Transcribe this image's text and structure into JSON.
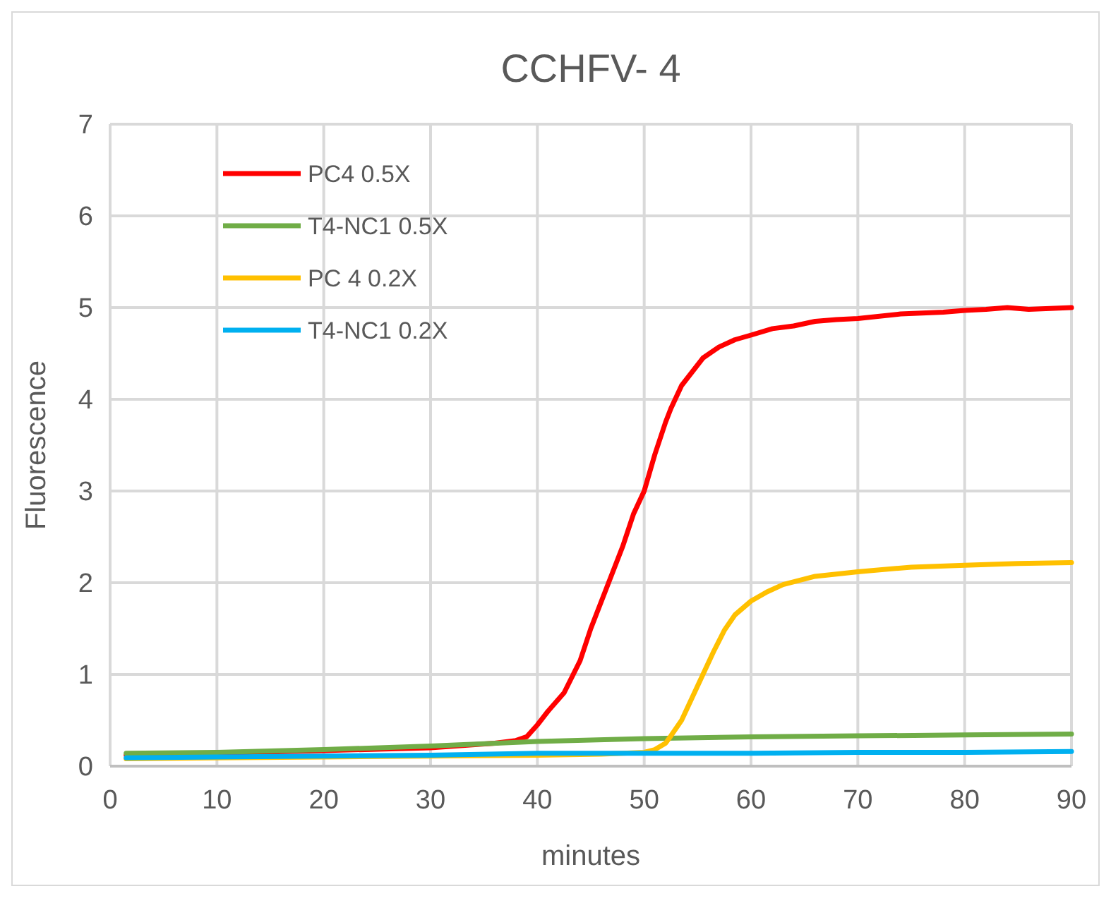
{
  "chart_data": {
    "type": "line",
    "title": "CCHFV- 4",
    "xlabel": "minutes",
    "ylabel": "Fluorescence",
    "xlim": [
      0,
      90
    ],
    "xticks": [
      0,
      10,
      20,
      30,
      40,
      50,
      60,
      70,
      80,
      90
    ],
    "ylim": [
      0,
      7
    ],
    "yticks": [
      0,
      1,
      2,
      3,
      4,
      5,
      6,
      7
    ],
    "grid": true,
    "legend": "top left",
    "marker": "none",
    "line_style": "solid",
    "series": [
      {
        "name": "PC4 0.5X",
        "color": "#ff0000",
        "x": [
          1.5,
          20,
          30,
          36,
          38,
          39,
          40,
          41,
          42.5,
          44,
          45,
          46.5,
          48,
          49,
          50,
          51,
          52,
          52.5,
          53.5,
          54.5,
          55.5,
          57,
          58.5,
          60,
          62,
          64,
          66,
          68,
          70,
          74,
          78,
          80,
          82,
          84,
          86,
          88,
          90
        ],
        "values": [
          0.12,
          0.17,
          0.2,
          0.25,
          0.28,
          0.32,
          0.45,
          0.6,
          0.8,
          1.15,
          1.5,
          1.95,
          2.4,
          2.75,
          3.0,
          3.4,
          3.75,
          3.9,
          4.15,
          4.3,
          4.45,
          4.57,
          4.65,
          4.7,
          4.77,
          4.8,
          4.85,
          4.87,
          4.88,
          4.93,
          4.95,
          4.97,
          4.98,
          5.0,
          4.98,
          4.99,
          5.0
        ]
      },
      {
        "name": "T4-NC1 0.5X",
        "color": "#70ad47",
        "x": [
          1.5,
          10,
          20,
          30,
          40,
          50,
          60,
          70,
          80,
          90
        ],
        "values": [
          0.14,
          0.15,
          0.18,
          0.22,
          0.27,
          0.3,
          0.32,
          0.33,
          0.34,
          0.35
        ]
      },
      {
        "name": "PC 4 0.2X",
        "color": "#ffc000",
        "x": [
          1.5,
          10,
          20,
          30,
          40,
          46,
          48,
          50,
          51,
          52,
          52.5,
          53.5,
          54.5,
          55.5,
          56.5,
          57.5,
          58.5,
          60,
          61.5,
          63,
          66,
          70,
          75,
          80,
          85,
          90
        ],
        "values": [
          0.08,
          0.09,
          0.1,
          0.11,
          0.12,
          0.13,
          0.14,
          0.15,
          0.18,
          0.25,
          0.33,
          0.5,
          0.75,
          1.0,
          1.25,
          1.48,
          1.65,
          1.8,
          1.9,
          1.98,
          2.07,
          2.12,
          2.17,
          2.19,
          2.21,
          2.22
        ]
      },
      {
        "name": "T4-NC1 0.2X",
        "color": "#00b0f0",
        "x": [
          1.5,
          10,
          20,
          30,
          40,
          50,
          60,
          70,
          80,
          90
        ],
        "values": [
          0.09,
          0.1,
          0.11,
          0.12,
          0.14,
          0.14,
          0.14,
          0.15,
          0.15,
          0.16
        ]
      }
    ]
  }
}
